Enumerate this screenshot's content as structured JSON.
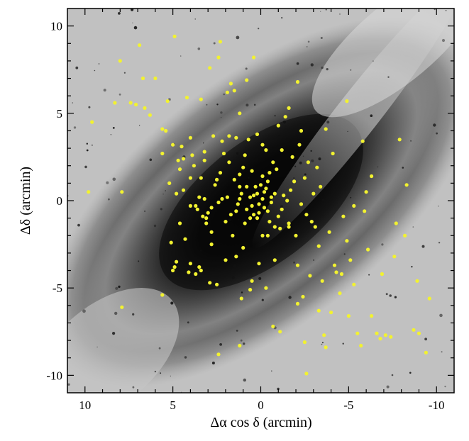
{
  "chart_data": {
    "type": "scatter",
    "title": "",
    "xlabel": "Δα cos δ  (arcmin)",
    "ylabel": "Δδ  (arcmin)",
    "xlim": [
      11,
      -11
    ],
    "ylim": [
      -11,
      11
    ],
    "x_ticks": [
      10,
      5,
      0,
      -5,
      -10
    ],
    "y_ticks": [
      10,
      5,
      0,
      -5,
      -10
    ],
    "x_tick_labels": [
      "10",
      "5",
      "0",
      "-5",
      "-10"
    ],
    "y_tick_labels": [
      "10",
      "5",
      "0",
      "-5",
      "-10"
    ],
    "background": "grayscale galaxy image",
    "marker_color": "#f2f230",
    "series": [
      {
        "points": [
          [
            9.8,
            0.5
          ],
          [
            9.6,
            4.5
          ],
          [
            8.3,
            5.6
          ],
          [
            8.0,
            8.0
          ],
          [
            7.9,
            0.5
          ],
          [
            7.9,
            -6.1
          ],
          [
            7.4,
            5.6
          ],
          [
            7.1,
            5.5
          ],
          [
            6.9,
            8.9
          ],
          [
            6.7,
            7.0
          ],
          [
            6.6,
            5.3
          ],
          [
            6.3,
            4.9
          ],
          [
            6.0,
            7.0
          ],
          [
            5.6,
            4.1
          ],
          [
            5.6,
            -5.4
          ],
          [
            5.4,
            4.0
          ],
          [
            5.3,
            5.7
          ],
          [
            5.2,
            1.0
          ],
          [
            5.1,
            -2.4
          ],
          [
            5.0,
            3.2
          ],
          [
            4.9,
            9.4
          ],
          [
            4.9,
            -3.8
          ],
          [
            4.8,
            0.4
          ],
          [
            4.7,
            2.3
          ],
          [
            4.6,
            -1.3
          ],
          [
            4.5,
            3.1
          ],
          [
            4.4,
            2.4
          ],
          [
            4.4,
            0.6
          ],
          [
            4.1,
            -4.1
          ],
          [
            4.0,
            1.3
          ],
          [
            4.0,
            -3.6
          ],
          [
            4.0,
            -0.3
          ],
          [
            4.0,
            3.6
          ],
          [
            3.9,
            2.6
          ],
          [
            3.8,
            2.0
          ],
          [
            3.7,
            -0.3
          ],
          [
            3.6,
            -0.5
          ],
          [
            3.5,
            0.2
          ],
          [
            3.5,
            -3.8
          ],
          [
            3.4,
            -4.0
          ],
          [
            3.4,
            1.3
          ],
          [
            3.3,
            -0.9
          ],
          [
            3.2,
            0.1
          ],
          [
            3.2,
            2.3
          ],
          [
            3.1,
            -1.0
          ],
          [
            3.1,
            -1.3
          ],
          [
            3.0,
            -0.7
          ],
          [
            2.8,
            -0.4
          ],
          [
            2.8,
            -1.8
          ],
          [
            2.7,
            3.7
          ],
          [
            2.6,
            0.9
          ],
          [
            2.5,
            -4.8
          ],
          [
            2.5,
            1.2
          ],
          [
            2.3,
            9.1
          ],
          [
            2.2,
            0.1
          ],
          [
            1.8,
            3.7
          ],
          [
            1.6,
            -2.0
          ],
          [
            1.5,
            1.2
          ],
          [
            1.5,
            6.3
          ],
          [
            1.2,
            0.8
          ],
          [
            1.2,
            0.1
          ],
          [
            1.2,
            1.5
          ],
          [
            0.9,
            -1.3
          ],
          [
            0.8,
            0.8
          ],
          [
            0.6,
            -1.0
          ],
          [
            0.5,
            1.7
          ],
          [
            0.4,
            -0.8
          ],
          [
            0.2,
            0.4
          ],
          [
            0.1,
            -0.7
          ],
          [
            0.0,
            0.9
          ],
          [
            -0.1,
            -2.0
          ],
          [
            -0.1,
            1.4
          ],
          [
            -0.2,
            0.5
          ],
          [
            -0.4,
            -0.6
          ],
          [
            -0.5,
            1.6
          ],
          [
            -0.6,
            0.2
          ],
          [
            -0.7,
            2.2
          ],
          [
            -0.8,
            -1.5
          ],
          [
            -0.9,
            1.8
          ],
          [
            -1.0,
            -0.9
          ],
          [
            -1.1,
            -1.6
          ],
          [
            -1.2,
            2.9
          ],
          [
            -1.3,
            0.3
          ],
          [
            -1.4,
            4.8
          ],
          [
            -1.6,
            -1.3
          ],
          [
            -1.7,
            0.6
          ],
          [
            -1.9,
            1.1
          ],
          [
            -2.0,
            -2.0
          ],
          [
            -2.1,
            -3.7
          ],
          [
            -2.2,
            3.2
          ],
          [
            -2.4,
            -5.5
          ],
          [
            -2.5,
            -8.1
          ],
          [
            -2.6,
            -9.9
          ],
          [
            -2.7,
            2.2
          ],
          [
            -2.8,
            -4.3
          ],
          [
            -3.0,
            0.4
          ],
          [
            -3.1,
            -1.5
          ],
          [
            -3.2,
            1.9
          ],
          [
            -3.3,
            -2.6
          ],
          [
            -3.4,
            0.8
          ],
          [
            -3.5,
            -4.6
          ],
          [
            -3.6,
            -7.7
          ],
          [
            -3.7,
            4.1
          ],
          [
            -3.9,
            -1.8
          ],
          [
            -4.0,
            -6.4
          ],
          [
            -4.1,
            2.7
          ],
          [
            -4.2,
            -3.7
          ],
          [
            -4.3,
            -4.1
          ],
          [
            -4.5,
            -5.3
          ],
          [
            -4.6,
            -4.2
          ],
          [
            -4.7,
            -0.9
          ],
          [
            -4.9,
            5.7
          ],
          [
            -5.0,
            -6.6
          ],
          [
            -5.1,
            -3.4
          ],
          [
            -5.3,
            -4.8
          ],
          [
            -5.5,
            -7.6
          ],
          [
            -5.7,
            -8.3
          ],
          [
            -5.8,
            3.4
          ],
          [
            -5.9,
            -0.6
          ],
          [
            -6.1,
            -2.8
          ],
          [
            -6.3,
            -6.6
          ],
          [
            -6.6,
            -7.6
          ],
          [
            -6.8,
            -7.9
          ],
          [
            -7.1,
            -7.7
          ],
          [
            -7.4,
            -7.8
          ],
          [
            -7.7,
            -1.3
          ],
          [
            -7.9,
            3.5
          ],
          [
            -8.3,
            0.9
          ],
          [
            -8.7,
            -7.4
          ],
          [
            -8.9,
            -4.6
          ],
          [
            -9.0,
            -7.6
          ],
          [
            -9.4,
            -8.7
          ],
          [
            -9.6,
            -5.6
          ],
          [
            1.0,
            1.9
          ],
          [
            0.9,
            2.6
          ],
          [
            0.7,
            3.5
          ],
          [
            0.5,
            -0.3
          ],
          [
            0.3,
            0.8
          ],
          [
            0.1,
            -0.2
          ],
          [
            -0.1,
            0.1
          ],
          [
            -0.2,
            -0.4
          ],
          [
            -0.3,
            0.7
          ],
          [
            -0.4,
            1.1
          ],
          [
            -0.5,
            -1.2
          ],
          [
            -0.6,
            -0.1
          ],
          [
            -0.8,
            0.4
          ],
          [
            1.4,
            -0.6
          ],
          [
            1.3,
            -0.2
          ],
          [
            1.1,
            0.4
          ],
          [
            0.8,
            -0.5
          ],
          [
            0.6,
            0.2
          ],
          [
            0.4,
            0.3
          ],
          [
            0.2,
            -1.0
          ],
          [
            -1.2,
            -0.5
          ],
          [
            -1.5,
            0.0
          ],
          [
            -1.6,
            -1.5
          ],
          [
            -1.8,
            2.5
          ],
          [
            -2.3,
            -0.2
          ],
          [
            -2.5,
            1.3
          ],
          [
            -2.6,
            -0.8
          ],
          [
            -2.9,
            -1.2
          ],
          [
            1.7,
            -0.8
          ],
          [
            1.9,
            0.2
          ],
          [
            2.0,
            -1.2
          ],
          [
            2.1,
            2.7
          ],
          [
            2.3,
            1.6
          ],
          [
            2.4,
            -0.1
          ],
          [
            1.0,
            -2.7
          ],
          [
            0.5,
            -4.6
          ],
          [
            0.1,
            -3.6
          ],
          [
            -0.4,
            -2.0
          ],
          [
            -0.8,
            -3.4
          ],
          [
            1.1,
            -5.6
          ],
          [
            0.6,
            -5.1
          ],
          [
            -0.3,
            -5.0
          ],
          [
            -1.1,
            -7.5
          ],
          [
            -0.7,
            -7.2
          ],
          [
            -2.1,
            -5.9
          ],
          [
            1.8,
            2.2
          ],
          [
            2.2,
            3.4
          ],
          [
            1.4,
            3.6
          ],
          [
            -0.1,
            3.2
          ],
          [
            -0.3,
            2.9
          ],
          [
            0.2,
            3.8
          ],
          [
            -1.0,
            4.3
          ],
          [
            -1.6,
            5.3
          ],
          [
            -2.1,
            6.8
          ],
          [
            -2.3,
            4.0
          ],
          [
            0.4,
            8.2
          ],
          [
            0.8,
            6.9
          ],
          [
            1.7,
            6.7
          ],
          [
            1.9,
            6.2
          ],
          [
            1.2,
            5.0
          ],
          [
            2.9,
            7.6
          ],
          [
            2.4,
            8.2
          ],
          [
            3.4,
            5.8
          ],
          [
            4.2,
            5.9
          ],
          [
            5.6,
            2.7
          ],
          [
            4.6,
            1.8
          ],
          [
            3.2,
            2.8
          ],
          [
            4.3,
            -2.2
          ],
          [
            5.0,
            -4.0
          ],
          [
            4.8,
            -3.5
          ],
          [
            3.7,
            -4.2
          ],
          [
            2.9,
            -4.7
          ],
          [
            2.8,
            -2.5
          ],
          [
            2.0,
            -3.4
          ],
          [
            1.4,
            -3.2
          ],
          [
            1.2,
            -8.3
          ],
          [
            2.4,
            -8.8
          ],
          [
            -3.3,
            -6.3
          ],
          [
            -3.7,
            -8.4
          ],
          [
            -4.9,
            -2.3
          ],
          [
            -5.3,
            -0.3
          ],
          [
            -6.0,
            0.5
          ],
          [
            -6.3,
            1.4
          ],
          [
            -6.9,
            -4.2
          ],
          [
            -7.6,
            -3.2
          ],
          [
            -8.2,
            -2.0
          ]
        ]
      }
    ]
  }
}
